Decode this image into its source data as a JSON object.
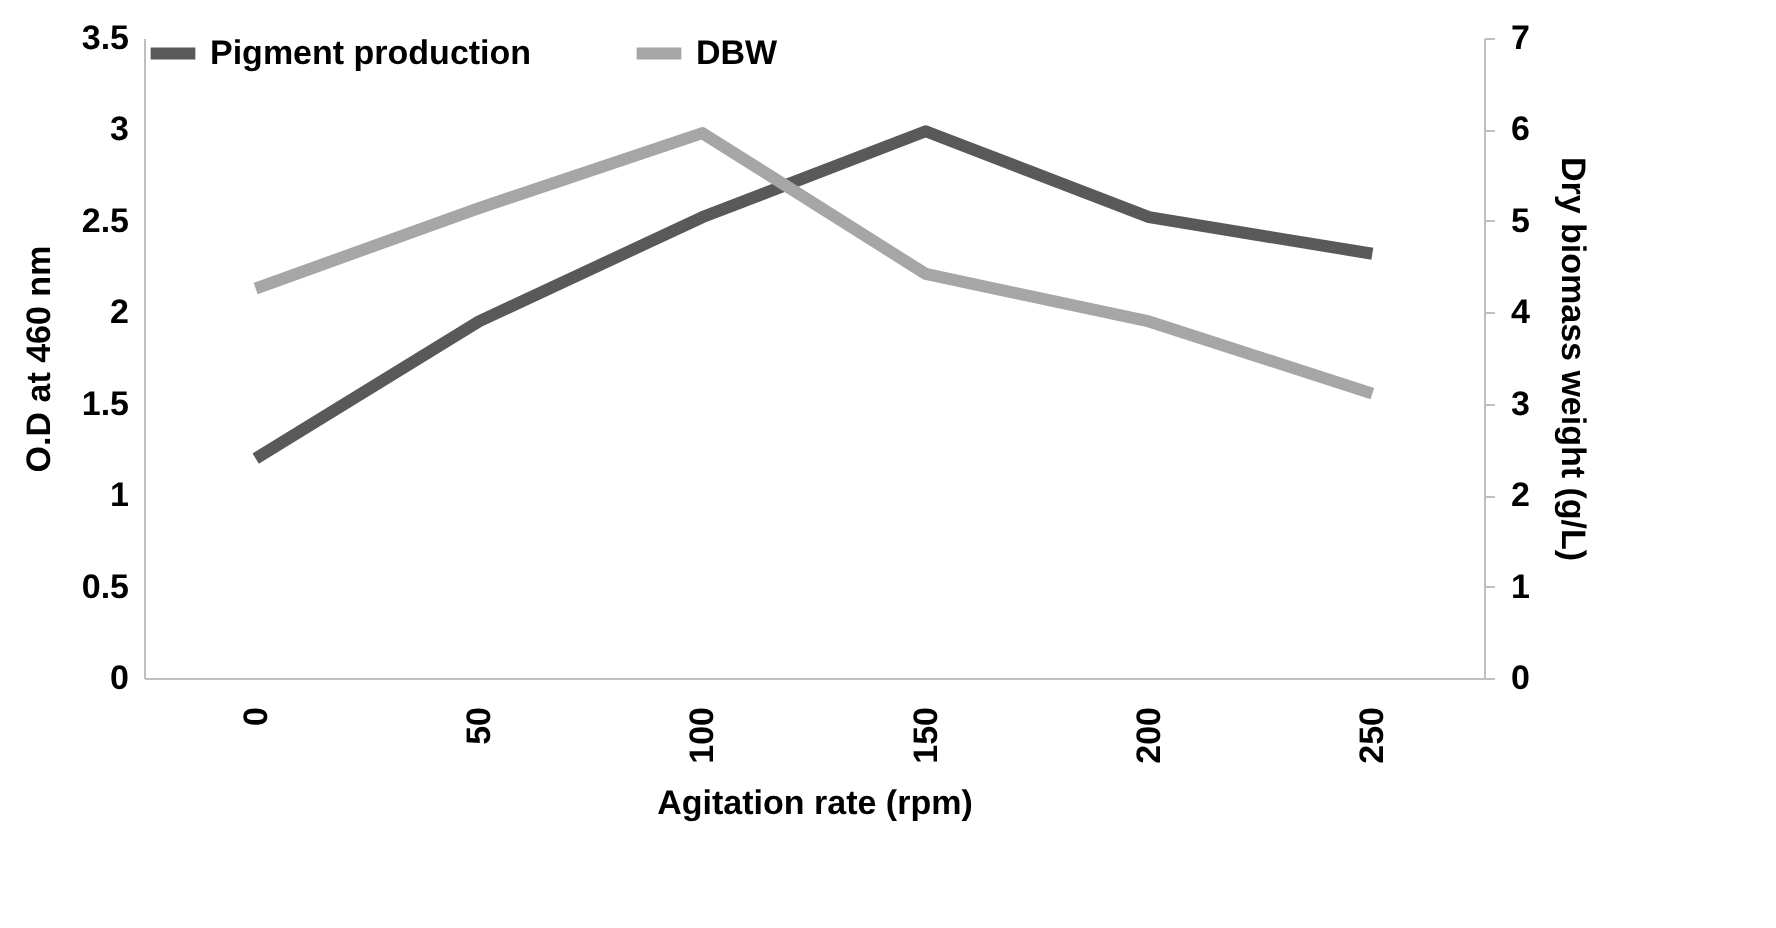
{
  "chart_data": {
    "type": "line",
    "xlabel": "Agitation rate (rpm)",
    "ylabel": "O.D at 460 nm",
    "y2label": "Dry biomass weight (g/L)",
    "categories": [
      "0",
      "50",
      "100",
      "150",
      "200",
      "250"
    ],
    "series": [
      {
        "name": "Pigment production",
        "color": "#595959",
        "values": [
          1.2,
          1.95,
          2.52,
          2.99,
          2.52,
          2.32
        ]
      },
      {
        "name": "DBW",
        "color": "#a6a6a6",
        "axis": "y2",
        "values": [
          4.26,
          5.14,
          5.96,
          4.42,
          3.9,
          3.11
        ]
      }
    ],
    "ylim": [
      0,
      3.5
    ],
    "yticks": [
      0,
      0.5,
      1,
      1.5,
      2,
      2.5,
      3,
      3.5
    ],
    "y2lim": [
      0,
      7
    ],
    "y2ticks": [
      0,
      1,
      2,
      3,
      4,
      5,
      6,
      7
    ],
    "grid": false,
    "legend": "top",
    "marker": "none",
    "line_style": "solid"
  }
}
